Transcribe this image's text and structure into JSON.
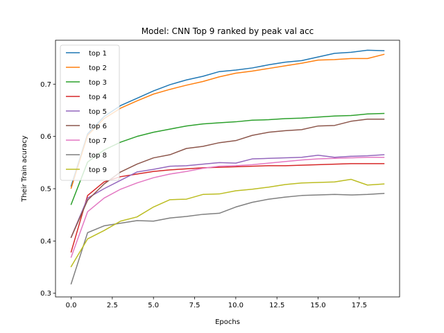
{
  "chart_data": {
    "type": "line",
    "title": "Model: CNN Top 9 ranked by peak val acc",
    "xlabel": "Epochs",
    "ylabel": "Their Train acuracy",
    "xlim": [
      -0.95,
      19.95
    ],
    "ylim": [
      0.293,
      0.784
    ],
    "xticks": [
      0.0,
      2.5,
      5.0,
      7.5,
      10.0,
      12.5,
      15.0,
      17.5
    ],
    "xtick_labels": [
      "0.0",
      "2.5",
      "5.0",
      "7.5",
      "10.0",
      "12.5",
      "15.0",
      "17.5"
    ],
    "yticks": [
      0.3,
      0.4,
      0.5,
      0.6,
      0.7
    ],
    "ytick_labels": [
      "0.3",
      "0.4",
      "0.5",
      "0.6",
      "0.7"
    ],
    "grid": false,
    "legend_position": "top-left",
    "x": [
      0,
      1,
      2,
      3,
      4,
      5,
      6,
      7,
      8,
      9,
      10,
      11,
      12,
      13,
      14,
      15,
      16,
      17,
      18,
      19
    ],
    "series": [
      {
        "name": "top 1",
        "color": "#1f77b4",
        "values": [
          0.505,
          0.605,
          0.638,
          0.659,
          0.673,
          0.687,
          0.699,
          0.708,
          0.715,
          0.724,
          0.727,
          0.731,
          0.737,
          0.742,
          0.745,
          0.752,
          0.759,
          0.761,
          0.765,
          0.764
        ]
      },
      {
        "name": "top 2",
        "color": "#ff7f0e",
        "values": [
          0.501,
          0.602,
          0.634,
          0.654,
          0.668,
          0.681,
          0.69,
          0.698,
          0.705,
          0.714,
          0.721,
          0.725,
          0.73,
          0.735,
          0.74,
          0.746,
          0.747,
          0.749,
          0.749,
          0.757
        ]
      },
      {
        "name": "top 3",
        "color": "#2ca02c",
        "values": [
          0.47,
          0.551,
          0.574,
          0.589,
          0.6,
          0.608,
          0.614,
          0.62,
          0.624,
          0.626,
          0.628,
          0.631,
          0.632,
          0.634,
          0.635,
          0.637,
          0.639,
          0.64,
          0.643,
          0.644
        ]
      },
      {
        "name": "top 4",
        "color": "#d62728",
        "values": [
          0.379,
          0.487,
          0.513,
          0.523,
          0.528,
          0.533,
          0.536,
          0.538,
          0.54,
          0.541,
          0.542,
          0.543,
          0.544,
          0.544,
          0.545,
          0.546,
          0.547,
          0.548,
          0.548,
          0.548
        ]
      },
      {
        "name": "top 5",
        "color": "#9467bd",
        "values": [
          0.407,
          0.482,
          0.5,
          0.516,
          0.532,
          0.537,
          0.543,
          0.544,
          0.547,
          0.55,
          0.549,
          0.557,
          0.558,
          0.559,
          0.56,
          0.564,
          0.56,
          0.562,
          0.563,
          0.565
        ]
      },
      {
        "name": "top 6",
        "color": "#8c564b",
        "values": [
          0.407,
          0.478,
          0.509,
          0.532,
          0.547,
          0.559,
          0.565,
          0.577,
          0.581,
          0.588,
          0.592,
          0.602,
          0.608,
          0.611,
          0.613,
          0.62,
          0.621,
          0.629,
          0.633,
          0.633
        ]
      },
      {
        "name": "top 7",
        "color": "#e377c2",
        "values": [
          0.369,
          0.456,
          0.482,
          0.499,
          0.511,
          0.521,
          0.528,
          0.533,
          0.539,
          0.543,
          0.544,
          0.546,
          0.549,
          0.552,
          0.555,
          0.557,
          0.558,
          0.559,
          0.56,
          0.56
        ]
      },
      {
        "name": "top 8",
        "color": "#7f7f7f",
        "values": [
          0.318,
          0.416,
          0.429,
          0.434,
          0.439,
          0.438,
          0.444,
          0.447,
          0.451,
          0.453,
          0.465,
          0.474,
          0.48,
          0.484,
          0.487,
          0.488,
          0.489,
          0.488,
          0.489,
          0.491
        ]
      },
      {
        "name": "top 9",
        "color": "#bcbd22",
        "values": [
          0.351,
          0.404,
          0.42,
          0.438,
          0.446,
          0.465,
          0.479,
          0.48,
          0.489,
          0.49,
          0.496,
          0.499,
          0.503,
          0.508,
          0.511,
          0.512,
          0.513,
          0.518,
          0.507,
          0.509
        ]
      }
    ]
  }
}
